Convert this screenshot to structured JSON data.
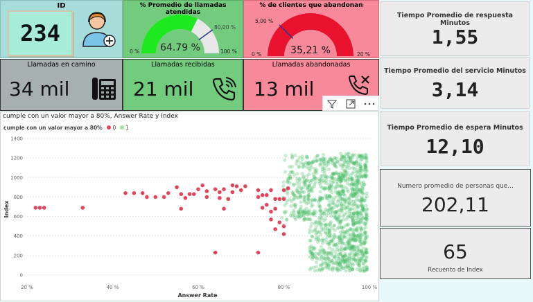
{
  "colors": {
    "teal": "#a6dcd9",
    "green": "#73cc7e",
    "pink": "#f7899a",
    "gray": "#a6b0b0",
    "red_dot": "#e0465c",
    "green_dot": "#3bb85a"
  },
  "id_tile": {
    "title": "ID",
    "value": "234",
    "icon": "agent-add-icon"
  },
  "gauge_atendidas": {
    "title": "% Promedio de llamadas atendidas",
    "value": "64.79 %",
    "min": "0 %",
    "max": "100 %",
    "target": "80,00 %",
    "fraction": 0.6479,
    "target_fraction": 0.8
  },
  "gauge_abandonan": {
    "title": "% de clientes que abandonan",
    "value": "35,21 %",
    "min": "0 %",
    "max": "20 %",
    "target": "5,00 %",
    "fraction": 1.0,
    "target_fraction": 0.25
  },
  "camino": {
    "title": "Llamadas en camino",
    "value": "34 mil",
    "icon": "phone-keypad-icon"
  },
  "recibidas": {
    "title": "Llamadas recibidas",
    "value": "21 mil",
    "icon": "phone-ringing-icon"
  },
  "abandonadas": {
    "title": "Llamadas abandonadas",
    "value": "13 mil",
    "icon": "phone-cancel-icon"
  },
  "toolbar": {
    "icons": [
      "filter-icon",
      "focus-mode-icon",
      "more-options-icon"
    ]
  },
  "cards": [
    {
      "title": "Tiempo Promedio de respuesta Minutos",
      "value": "1,55"
    },
    {
      "title": "Tiempo Promedio del servicio Minutos",
      "value": "3,14"
    },
    {
      "title": "Tiempo Promedio de espera Minutos",
      "value": "12,10"
    }
  ],
  "card_personas": {
    "title": "Numero promedio de personas que...",
    "value": "202,11"
  },
  "card_index": {
    "value": "65",
    "title": "Recuento de Index"
  },
  "scatter": {
    "title": "cumple con un valor mayor a 80%, Answer Rate y Index",
    "legend_title": "cumple con un valor mayor a 80%",
    "chart_data": {
      "type": "scatter",
      "xlabel": "Answer Rate",
      "ylabel": "Index",
      "xlim": [
        0.2,
        1.0
      ],
      "ylim": [
        0,
        1400
      ],
      "x_ticks": [
        "20 %",
        "40 %",
        "60 %",
        "80 %",
        "100 %"
      ],
      "y_ticks": [
        "0",
        "200",
        "400",
        "600",
        "800",
        "1000",
        "1200",
        "1400"
      ],
      "series": [
        {
          "name": "0",
          "color": "#e0465c",
          "points": [
            [
              0.22,
              690
            ],
            [
              0.23,
              690
            ],
            [
              0.24,
              690
            ],
            [
              0.33,
              690
            ],
            [
              0.43,
              840
            ],
            [
              0.45,
              840
            ],
            [
              0.47,
              840
            ],
            [
              0.48,
              800
            ],
            [
              0.5,
              800
            ],
            [
              0.52,
              800
            ],
            [
              0.53,
              840
            ],
            [
              0.55,
              900
            ],
            [
              0.56,
              830
            ],
            [
              0.57,
              790
            ],
            [
              0.56,
              680
            ],
            [
              0.58,
              830
            ],
            [
              0.59,
              830
            ],
            [
              0.6,
              880
            ],
            [
              0.61,
              920
            ],
            [
              0.62,
              860
            ],
            [
              0.62,
              800
            ],
            [
              0.64,
              880
            ],
            [
              0.65,
              850
            ],
            [
              0.65,
              790
            ],
            [
              0.66,
              880
            ],
            [
              0.66,
              680
            ],
            [
              0.67,
              780
            ],
            [
              0.68,
              850
            ],
            [
              0.68,
              920
            ],
            [
              0.69,
              910
            ],
            [
              0.7,
              870
            ],
            [
              0.71,
              910
            ],
            [
              0.74,
              870
            ],
            [
              0.74,
              800
            ],
            [
              0.75,
              820
            ],
            [
              0.75,
              690
            ],
            [
              0.76,
              820
            ],
            [
              0.76,
              720
            ],
            [
              0.77,
              870
            ],
            [
              0.77,
              650
            ],
            [
              0.78,
              680
            ],
            [
              0.78,
              780
            ],
            [
              0.79,
              780
            ],
            [
              0.8,
              780
            ],
            [
              0.8,
              870
            ],
            [
              0.81,
              890
            ],
            [
              0.79,
              540
            ],
            [
              0.8,
              500
            ],
            [
              0.8,
              420
            ],
            [
              0.77,
              570
            ],
            [
              0.78,
              470
            ],
            [
              0.64,
              230
            ],
            [
              0.74,
              230
            ]
          ]
        },
        {
          "name": "1",
          "color": "#3bb85a",
          "points": []
        }
      ]
    }
  }
}
